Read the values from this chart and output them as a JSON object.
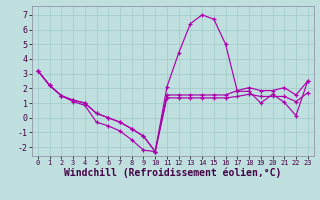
{
  "xlabel": "Windchill (Refroidissement éolien,°C)",
  "background_color": "#c0e0e0",
  "grid_color": "#a0c8c8",
  "line_color": "#aa00aa",
  "ylim": [
    -2.6,
    7.6
  ],
  "xlim": [
    -0.5,
    23.5
  ],
  "yticks": [
    -2,
    -1,
    0,
    1,
    2,
    3,
    4,
    5,
    6,
    7
  ],
  "xticks": [
    0,
    1,
    2,
    3,
    4,
    5,
    6,
    7,
    8,
    9,
    10,
    11,
    12,
    13,
    14,
    15,
    16,
    17,
    18,
    19,
    20,
    21,
    22,
    23
  ],
  "line1": [
    3.2,
    2.2,
    1.5,
    1.1,
    0.85,
    -0.3,
    -0.55,
    -0.9,
    -1.5,
    -2.2,
    -2.3,
    2.1,
    4.4,
    6.4,
    7.0,
    6.7,
    5.0,
    1.8,
    1.8,
    1.0,
    1.6,
    1.05,
    0.15,
    2.5
  ],
  "line2": [
    3.2,
    2.2,
    1.5,
    1.2,
    1.0,
    0.3,
    0.0,
    -0.3,
    -0.75,
    -1.25,
    -2.3,
    1.55,
    1.55,
    1.55,
    1.55,
    1.55,
    1.55,
    1.85,
    2.05,
    1.85,
    1.85,
    2.05,
    1.55,
    2.5
  ],
  "line3": [
    3.2,
    2.2,
    1.5,
    1.2,
    1.0,
    0.3,
    0.0,
    -0.3,
    -0.75,
    -1.25,
    -2.3,
    1.35,
    1.35,
    1.35,
    1.35,
    1.35,
    1.35,
    1.45,
    1.6,
    1.45,
    1.45,
    1.45,
    1.1,
    1.7
  ],
  "tick_fontsize_x": 5,
  "tick_fontsize_y": 6,
  "xlabel_fontsize": 7
}
